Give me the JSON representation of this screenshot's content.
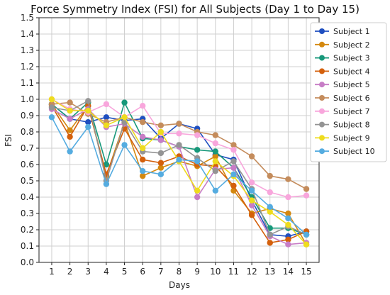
{
  "chart_data": {
    "type": "line",
    "title": "Force Symmetry Index (FSI) for All Subjects (Day 1 to Day 15)",
    "xlabel": "Days",
    "ylabel": "FSI",
    "x": [
      1,
      2,
      3,
      4,
      5,
      6,
      7,
      8,
      9,
      10,
      11,
      12,
      13,
      14,
      15
    ],
    "xlim": [
      0.3,
      15.7
    ],
    "ylim": [
      0.0,
      1.5
    ],
    "yticks": [
      "0.0",
      "0.1",
      "0.2",
      "0.3",
      "0.4",
      "0.5",
      "0.6",
      "0.7",
      "0.8",
      "0.9",
      "1.0",
      "1.1",
      "1.2",
      "1.3",
      "1.4",
      "1.5"
    ],
    "xticks": [
      "1",
      "2",
      "3",
      "4",
      "5",
      "6",
      "7",
      "8",
      "9",
      "10",
      "11",
      "12",
      "13",
      "14",
      "15"
    ],
    "grid": true,
    "legend_position": "top-right",
    "series": [
      {
        "name": "Subject 1",
        "color": "#1f4fc0",
        "values": [
          0.97,
          0.88,
          0.86,
          0.89,
          0.87,
          0.88,
          0.76,
          0.85,
          0.82,
          0.66,
          0.63,
          0.38,
          0.17,
          0.16,
          0.19
        ]
      },
      {
        "name": "Subject 2",
        "color": "#d4880f",
        "values": [
          0.97,
          0.81,
          0.96,
          0.53,
          0.86,
          0.53,
          0.58,
          0.62,
          0.59,
          0.65,
          0.44,
          0.3,
          0.33,
          0.3,
          0.11
        ]
      },
      {
        "name": "Subject 3",
        "color": "#17987a",
        "values": [
          0.97,
          0.88,
          0.98,
          0.6,
          0.98,
          0.76,
          0.75,
          0.71,
          0.69,
          0.68,
          0.58,
          0.4,
          0.21,
          0.21,
          0.17
        ]
      },
      {
        "name": "Subject 4",
        "color": "#d4600c",
        "values": [
          0.96,
          0.77,
          0.96,
          0.54,
          0.82,
          0.63,
          0.61,
          0.65,
          0.6,
          0.59,
          0.47,
          0.29,
          0.12,
          0.14,
          0.19
        ]
      },
      {
        "name": "Subject 5",
        "color": "#c77dc6",
        "values": [
          0.94,
          0.88,
          0.94,
          0.83,
          0.85,
          0.77,
          0.75,
          0.71,
          0.4,
          0.57,
          0.58,
          0.35,
          0.16,
          0.11,
          0.12
        ]
      },
      {
        "name": "Subject 6",
        "color": "#c48c5c",
        "values": [
          0.97,
          0.98,
          0.91,
          0.86,
          0.89,
          0.86,
          0.84,
          0.85,
          0.8,
          0.78,
          0.72,
          0.65,
          0.53,
          0.51,
          0.45
        ]
      },
      {
        "name": "Subject 7",
        "color": "#f8a6dc",
        "values": [
          1.0,
          0.94,
          0.92,
          0.97,
          0.89,
          0.96,
          0.79,
          0.79,
          0.78,
          0.73,
          0.69,
          0.49,
          0.43,
          0.4,
          0.41
        ]
      },
      {
        "name": "Subject 8",
        "color": "#949494",
        "values": [
          0.95,
          0.93,
          0.99,
          0.5,
          0.86,
          0.68,
          0.67,
          0.72,
          0.64,
          0.56,
          0.62,
          0.45,
          0.17,
          0.22,
          0.17
        ]
      },
      {
        "name": "Subject 9",
        "color": "#eedc1e",
        "values": [
          1.0,
          0.93,
          0.93,
          0.84,
          0.89,
          0.7,
          0.8,
          0.62,
          0.44,
          0.62,
          0.53,
          0.38,
          0.31,
          0.23,
          0.11
        ]
      },
      {
        "name": "Subject 10",
        "color": "#55ace0",
        "values": [
          0.89,
          0.68,
          0.83,
          0.48,
          0.72,
          0.56,
          0.54,
          0.63,
          0.62,
          0.44,
          0.54,
          0.44,
          0.34,
          0.27,
          0.17
        ]
      }
    ]
  }
}
